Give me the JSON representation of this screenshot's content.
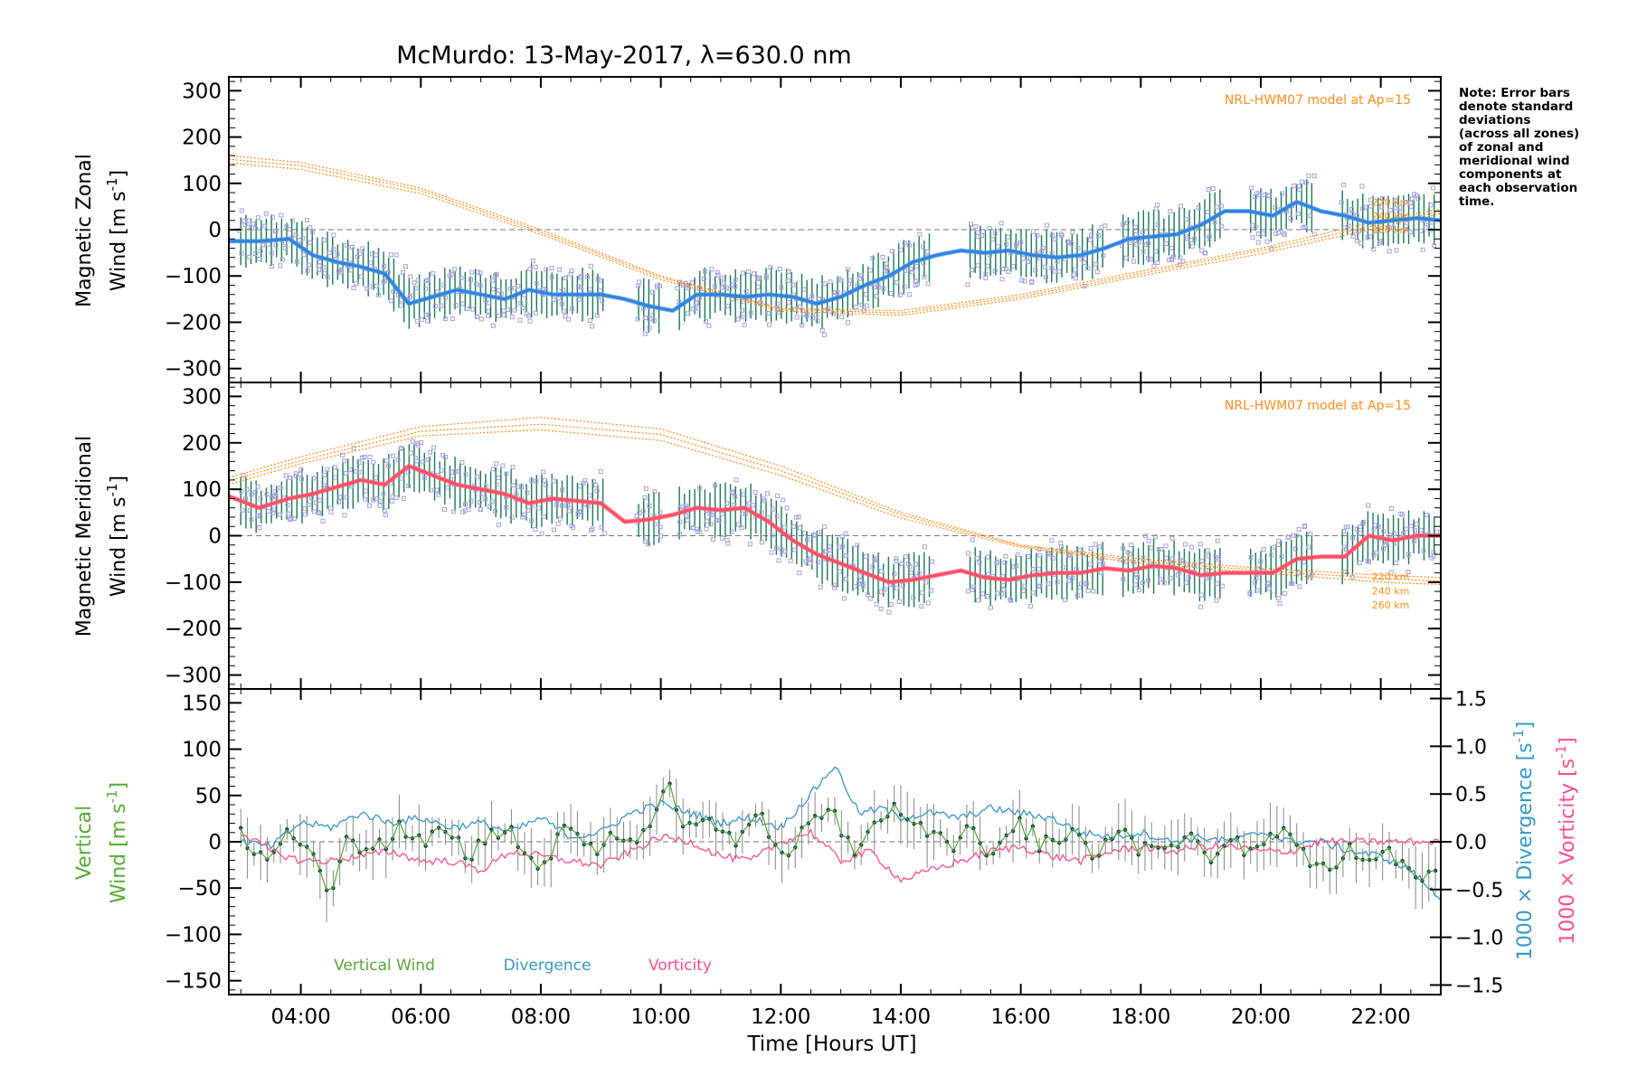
{
  "note_lines": [
    "Note: Error bars",
    "denote standard",
    "deviations",
    "(across all zones)",
    "of zonal and",
    "meridional wind",
    "components at",
    "each observation",
    "time."
  ],
  "colors": {
    "zonal_line": "#2233ee",
    "zonal_smooth": "#3aa0dd",
    "meridional_line": "#ff3333",
    "meridional_smooth": "#ff5a7a",
    "model": "#ff8c1a",
    "scatter": "#a8a0e0",
    "errorbar": "#1a7a55",
    "vertical": "#55aa33",
    "divergence": "#3399cc",
    "vorticity": "#ff4d88",
    "point": "#123a4a"
  },
  "chart_data": [
    {
      "type": "line",
      "panel": "zonal",
      "title": "McMurdo: 13-May-2017, λ=630.0 nm",
      "ylabel_line1": "Magnetic Zonal",
      "ylabel_line2": "Wind [m s",
      "ylabel_sup": "-1",
      "ylabel_close": "]",
      "xlim": [
        2.8,
        23.0
      ],
      "ylim": [
        -330,
        330
      ],
      "yticks": [
        300,
        200,
        100,
        0,
        -100,
        -200,
        -300
      ],
      "yticklabels": [
        "300",
        "200",
        "100",
        "0",
        "−100",
        "−200",
        "−300"
      ],
      "model_label": "NRL-HWM07 model at Ap=15",
      "altitude_labels": [
        "220 km",
        "240 km",
        "260 km"
      ],
      "series": [
        {
          "name": "Magnetic Zonal Wind",
          "x": [
            2.8,
            3.3,
            3.8,
            4.2,
            4.6,
            5.0,
            5.4,
            5.8,
            6.2,
            6.6,
            7.0,
            7.4,
            7.8,
            8.2,
            8.6,
            9.0,
            9.4,
            9.8,
            10.2,
            10.6,
            11.0,
            11.4,
            11.8,
            12.2,
            12.6,
            13.0,
            13.4,
            13.8,
            14.2,
            14.6,
            15.0,
            15.4,
            15.8,
            16.2,
            16.6,
            17.0,
            17.4,
            17.8,
            18.2,
            18.6,
            19.0,
            19.4,
            19.8,
            20.2,
            20.6,
            21.0,
            21.4,
            21.8,
            22.2,
            22.6,
            23.0
          ],
          "values": [
            -25,
            -25,
            -20,
            -55,
            -70,
            -80,
            -95,
            -160,
            -145,
            -130,
            -140,
            -150,
            -130,
            -140,
            -140,
            -140,
            -150,
            -165,
            -175,
            -140,
            -140,
            -145,
            -140,
            -145,
            -160,
            -145,
            -120,
            -100,
            -70,
            -55,
            -45,
            -50,
            -45,
            -55,
            -60,
            -55,
            -40,
            -20,
            -15,
            -10,
            10,
            40,
            40,
            30,
            60,
            40,
            30,
            15,
            20,
            25,
            20
          ]
        }
      ],
      "model": [
        {
          "name": "220 km",
          "x": [
            2.8,
            4,
            6,
            8,
            10,
            12,
            14,
            16,
            18,
            20,
            22,
            23
          ],
          "values": [
            160,
            145,
            90,
            0,
            -100,
            -170,
            -175,
            -140,
            -90,
            -40,
            20,
            45
          ]
        },
        {
          "name": "240 km",
          "x": [
            2.8,
            4,
            6,
            8,
            10,
            12,
            14,
            16,
            18,
            20,
            22,
            23
          ],
          "values": [
            152,
            138,
            85,
            -5,
            -103,
            -172,
            -180,
            -145,
            -95,
            -45,
            12,
            40
          ]
        },
        {
          "name": "260 km",
          "x": [
            2.8,
            4,
            6,
            8,
            10,
            12,
            14,
            16,
            18,
            20,
            22,
            23
          ],
          "values": [
            144,
            130,
            78,
            -10,
            -108,
            -176,
            -185,
            -150,
            -100,
            -52,
            5,
            35
          ]
        }
      ]
    },
    {
      "type": "line",
      "panel": "meridional",
      "ylabel_line1": "Magnetic Meridional",
      "ylabel_line2": "Wind [m s",
      "ylabel_sup": "-1",
      "ylabel_close": "]",
      "xlim": [
        2.8,
        23.0
      ],
      "ylim": [
        -330,
        330
      ],
      "yticks": [
        300,
        200,
        100,
        0,
        -100,
        -200,
        -300
      ],
      "yticklabels": [
        "300",
        "200",
        "100",
        "0",
        "−100",
        "−200",
        "−300"
      ],
      "model_label": "NRL-HWM07 model at Ap=15",
      "altitude_labels": [
        "220 km",
        "240 km",
        "260 km"
      ],
      "series": [
        {
          "name": "Magnetic Meridional Wind",
          "x": [
            2.8,
            3.3,
            3.8,
            4.2,
            4.6,
            5.0,
            5.4,
            5.8,
            6.2,
            6.6,
            7.0,
            7.4,
            7.8,
            8.2,
            8.6,
            9.0,
            9.4,
            9.8,
            10.2,
            10.6,
            11.0,
            11.4,
            11.8,
            12.2,
            12.6,
            13.0,
            13.4,
            13.8,
            14.2,
            14.6,
            15.0,
            15.4,
            15.8,
            16.2,
            16.6,
            17.0,
            17.4,
            17.8,
            18.2,
            18.6,
            19.0,
            19.4,
            19.8,
            20.2,
            20.6,
            21.0,
            21.4,
            21.8,
            22.2,
            22.6,
            23.0
          ],
          "values": [
            85,
            60,
            80,
            90,
            105,
            120,
            110,
            150,
            130,
            110,
            100,
            90,
            70,
            80,
            75,
            70,
            30,
            35,
            45,
            60,
            55,
            60,
            30,
            -10,
            -40,
            -60,
            -80,
            -100,
            -95,
            -85,
            -75,
            -90,
            -95,
            -85,
            -80,
            -80,
            -70,
            -75,
            -65,
            -70,
            -85,
            -80,
            -80,
            -80,
            -50,
            -45,
            -45,
            0,
            -10,
            0,
            0
          ]
        }
      ],
      "model": [
        {
          "name": "220 km",
          "x": [
            2.8,
            4,
            6,
            8,
            10,
            12,
            14,
            16,
            18,
            20,
            22,
            23
          ],
          "values": [
            125,
            170,
            235,
            255,
            230,
            150,
            50,
            -20,
            -50,
            -70,
            -85,
            -90
          ]
        },
        {
          "name": "240 km",
          "x": [
            2.8,
            4,
            6,
            8,
            10,
            12,
            14,
            16,
            18,
            20,
            22,
            23
          ],
          "values": [
            118,
            162,
            225,
            240,
            218,
            140,
            45,
            -22,
            -55,
            -75,
            -92,
            -98
          ]
        },
        {
          "name": "260 km",
          "x": [
            2.8,
            4,
            6,
            8,
            10,
            12,
            14,
            16,
            18,
            20,
            22,
            23
          ],
          "values": [
            110,
            155,
            215,
            228,
            205,
            130,
            38,
            -25,
            -60,
            -80,
            -100,
            -105
          ]
        }
      ]
    },
    {
      "type": "line",
      "panel": "vertical",
      "ylabel_line1": "Vertical",
      "ylabel_line2": "Wind [m s",
      "ylabel_sup": "-1",
      "ylabel_close": "]",
      "y2label_div": "1000 × Divergence [s",
      "y2label_vort": "1000 × Vorticity [s",
      "y2label_sup": "-1",
      "y2label_close": "]",
      "xlabel": "Time [Hours UT]",
      "xlim": [
        2.8,
        23.0
      ],
      "ylim": [
        -165,
        165
      ],
      "y2lim": [
        -1.6,
        1.6
      ],
      "yticks": [
        150,
        100,
        50,
        0,
        -50,
        -100,
        -150
      ],
      "yticklabels": [
        "150",
        "100",
        "50",
        "0",
        "−50",
        "−100",
        "−150"
      ],
      "y2ticks": [
        1.5,
        1.0,
        0.5,
        0.0,
        -0.5,
        -1.0,
        -1.5
      ],
      "y2ticklabels": [
        "1.5",
        "1.0",
        "0.5",
        "0.0",
        "−0.5",
        "−1.0",
        "−1.5"
      ],
      "xticks": [
        4,
        6,
        8,
        10,
        12,
        14,
        16,
        18,
        20,
        22
      ],
      "xticklabels": [
        "04:00",
        "06:00",
        "08:00",
        "10:00",
        "12:00",
        "14:00",
        "16:00",
        "18:00",
        "20:00",
        "22:00"
      ],
      "legend": [
        "Vertical Wind",
        "Divergence",
        "Vorticity"
      ],
      "series": [
        {
          "name": "Vertical Wind",
          "x": [
            3.0,
            3.4,
            3.8,
            4.2,
            4.5,
            4.8,
            5.2,
            5.6,
            6.0,
            6.4,
            6.8,
            7.2,
            7.6,
            8.0,
            8.4,
            8.8,
            9.2,
            9.6,
            10.0,
            10.1,
            10.4,
            10.8,
            11.2,
            11.6,
            12.0,
            12.4,
            12.8,
            13.2,
            13.6,
            14.0,
            14.4,
            14.8,
            15.2,
            15.6,
            16.0,
            16.4,
            16.8,
            17.2,
            17.6,
            18.0,
            18.4,
            18.8,
            19.2,
            19.6,
            20.0,
            20.4,
            20.8,
            21.2,
            21.6,
            22.0,
            22.4,
            22.8,
            23.0
          ],
          "values": [
            5,
            -10,
            5,
            -5,
            -55,
            10,
            -15,
            15,
            -5,
            20,
            -20,
            10,
            5,
            -25,
            15,
            -10,
            5,
            10,
            40,
            65,
            20,
            35,
            -5,
            30,
            -15,
            10,
            45,
            -10,
            30,
            40,
            5,
            -5,
            10,
            -15,
            20,
            -5,
            5,
            -10,
            10,
            -5,
            -10,
            5,
            -15,
            -5,
            0,
            5,
            -15,
            -20,
            -10,
            -15,
            -20,
            -40,
            -30
          ]
        },
        {
          "name": "Divergence",
          "x": [
            3.0,
            3.5,
            4.0,
            4.5,
            5.0,
            5.5,
            6.0,
            6.5,
            7.0,
            7.5,
            8.0,
            8.5,
            9.0,
            9.5,
            10.0,
            10.5,
            11.0,
            11.5,
            12.0,
            12.5,
            12.9,
            13.3,
            13.7,
            14.0,
            14.5,
            15.0,
            15.5,
            16.0,
            16.5,
            17.0,
            17.5,
            18.0,
            18.5,
            19.0,
            19.5,
            20.0,
            20.5,
            21.0,
            21.5,
            22.0,
            22.5,
            23.0
          ],
          "values": [
            0.0,
            -0.05,
            0.2,
            0.15,
            0.3,
            0.2,
            0.25,
            0.15,
            0.2,
            0.1,
            0.25,
            0.05,
            0.1,
            0.3,
            0.4,
            0.3,
            0.2,
            0.25,
            0.15,
            0.5,
            0.8,
            0.3,
            0.35,
            0.25,
            0.3,
            0.25,
            0.35,
            0.3,
            0.25,
            0.1,
            0.05,
            0.1,
            0.0,
            0.05,
            0.0,
            0.1,
            0.0,
            0.0,
            -0.1,
            -0.15,
            -0.3,
            -0.6
          ]
        },
        {
          "name": "Vorticity",
          "x": [
            3.0,
            3.5,
            4.0,
            4.5,
            5.0,
            5.5,
            6.0,
            6.5,
            7.0,
            7.5,
            8.0,
            8.5,
            9.0,
            9.5,
            10.0,
            10.5,
            11.0,
            11.5,
            12.0,
            12.5,
            13.0,
            13.5,
            14.0,
            14.5,
            15.0,
            15.5,
            16.0,
            16.5,
            17.0,
            17.5,
            18.0,
            18.5,
            19.0,
            19.5,
            20.0,
            20.5,
            21.0,
            21.5,
            22.0,
            22.5,
            23.0
          ],
          "values": [
            0.1,
            -0.1,
            -0.2,
            -0.2,
            -0.15,
            -0.1,
            -0.2,
            -0.2,
            -0.3,
            -0.1,
            -0.15,
            -0.2,
            -0.25,
            -0.1,
            0.05,
            0.0,
            -0.15,
            -0.2,
            0.0,
            0.1,
            -0.2,
            -0.1,
            -0.4,
            -0.3,
            -0.2,
            -0.1,
            -0.05,
            -0.15,
            -0.2,
            -0.1,
            -0.05,
            -0.1,
            -0.05,
            -0.05,
            -0.1,
            -0.1,
            0.0,
            0.0,
            0.0,
            0.0,
            0.0
          ]
        }
      ]
    }
  ]
}
